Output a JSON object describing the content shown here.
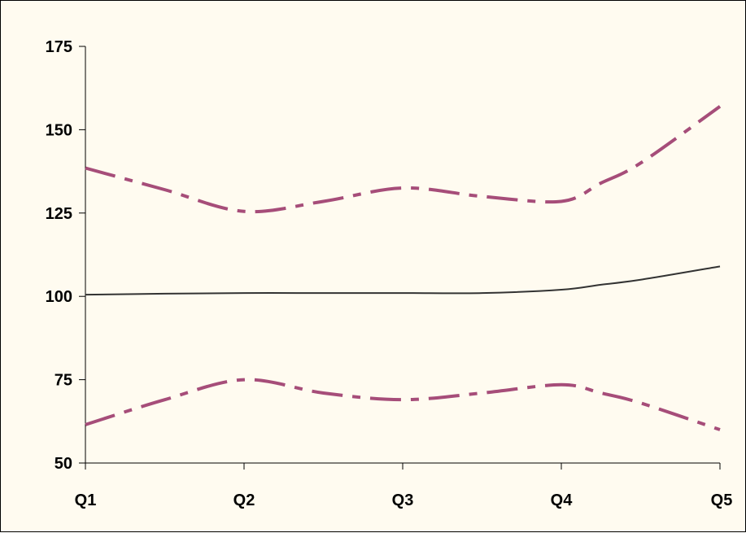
{
  "chart_data": {
    "type": "line",
    "categories": [
      "Q1",
      "Q2",
      "Q3",
      "Q4",
      "Q5"
    ],
    "x": [
      1,
      1.5,
      2,
      2.5,
      3,
      3.5,
      4,
      4.25,
      4.5,
      5
    ],
    "series": [
      {
        "values": [
          100.5,
          100.8,
          101,
          101,
          101,
          101,
          102,
          103.5,
          105,
          109
        ],
        "color": "#333333",
        "style": "solid"
      },
      {
        "values": [
          138.5,
          132,
          125.5,
          128.5,
          132.5,
          130,
          128.5,
          134,
          140,
          157
        ],
        "color": "#a64d79",
        "style": "dash-dot"
      },
      {
        "values": [
          61.5,
          69,
          75,
          71,
          69,
          71,
          73.5,
          71,
          68,
          60
        ],
        "color": "#a64d79",
        "style": "dash-dot"
      }
    ],
    "yticks": [
      50,
      75,
      100,
      125,
      150,
      175
    ],
    "ylim": [
      50,
      175
    ],
    "title": "",
    "xlabel": "",
    "ylabel": "",
    "grid": false,
    "legend": "none"
  }
}
